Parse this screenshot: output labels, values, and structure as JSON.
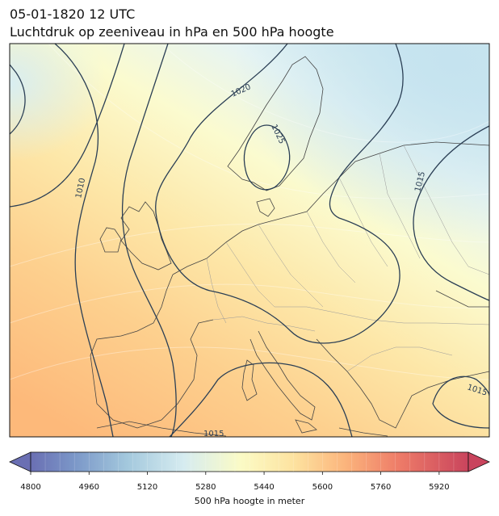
{
  "title": {
    "line1": "05-01-1820 12 UTC",
    "line2": "Luchtdruk op zeeniveau in hPa en 500 hPa hoogte"
  },
  "isobars": {
    "unit": "hPa",
    "labels": [
      "1010",
      "1015",
      "1020",
      "1025",
      "1015",
      "1015",
      "1015"
    ],
    "color": "#2b3f55"
  },
  "colorbar": {
    "label": "500 hPa hoogte in meter",
    "min": 4800,
    "max": 6000,
    "ticks": [
      "4800",
      "4960",
      "5120",
      "5280",
      "5440",
      "5600",
      "5760",
      "5920"
    ],
    "extend": "both",
    "colormap_start": "#5e4fa2",
    "colormap_mid": "#ffffbf",
    "colormap_end": "#9e0142"
  },
  "map": {
    "region": "Europe",
    "coastline_color": "#444444",
    "border_color": "#999999"
  }
}
